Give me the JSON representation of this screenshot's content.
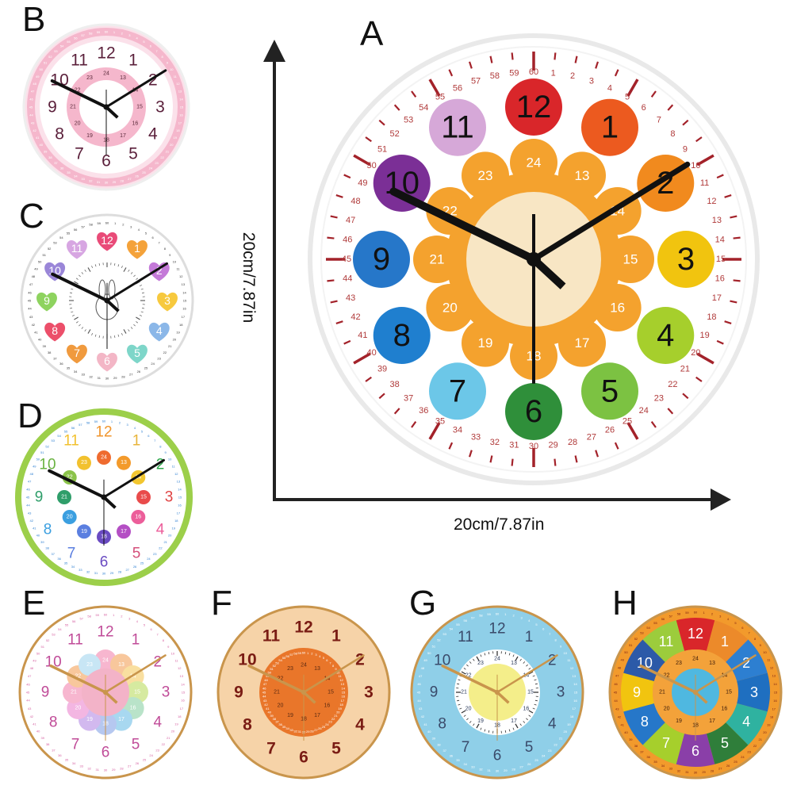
{
  "variants": [
    {
      "label": "A",
      "palette": "rainbow-large"
    },
    {
      "label": "B",
      "palette": "pink"
    },
    {
      "label": "C",
      "palette": "hearts"
    },
    {
      "label": "D",
      "palette": "green-rim"
    },
    {
      "label": "E",
      "palette": "flower-pastel"
    },
    {
      "label": "F",
      "palette": "orange"
    },
    {
      "label": "G",
      "palette": "blue"
    },
    {
      "label": "H",
      "palette": "segments"
    }
  ],
  "dimensions": {
    "width_label": "20cm/7.87in",
    "height_label": "20cm/7.87in"
  },
  "hours": [
    "12",
    "1",
    "2",
    "3",
    "4",
    "5",
    "6",
    "7",
    "8",
    "9",
    "10",
    "11"
  ],
  "hours24": [
    "24",
    "13",
    "14",
    "15",
    "16",
    "17",
    "18",
    "19",
    "20",
    "21",
    "22",
    "23"
  ],
  "minutes": [
    "60",
    "1",
    "2",
    "3",
    "4",
    "5",
    "6",
    "7",
    "8",
    "9",
    "10",
    "11",
    "12",
    "13",
    "14",
    "15",
    "16",
    "17",
    "18",
    "19",
    "20",
    "21",
    "22",
    "23",
    "24",
    "25",
    "26",
    "27",
    "28",
    "29",
    "30",
    "31",
    "32",
    "33",
    "34",
    "35",
    "36",
    "37",
    "38",
    "39",
    "40",
    "41",
    "42",
    "43",
    "44",
    "45",
    "46",
    "47",
    "48",
    "49",
    "50",
    "51",
    "52",
    "53",
    "54",
    "55",
    "56",
    "57",
    "58",
    "59"
  ],
  "colors": {
    "rainbow": [
      "#d9262a",
      "#ec5a1f",
      "#f18a1e",
      "#f1c40f",
      "#a6cf2c",
      "#7cc242",
      "#2f8f3a",
      "#6cc7e8",
      "#1f7fcf",
      "#2677c9",
      "#7b2f96",
      "#d6a8d8"
    ],
    "tick": "#a3222a",
    "hand": "#111111",
    "petal": "#f4a22e",
    "center": "#f8e6c4",
    "pink": "#f5b7cc",
    "green": "#9ccf4a",
    "orange": "#e9762a",
    "peach": "#f6d3a8",
    "blue": "#8fcfe8",
    "gold": "#c9954c"
  },
  "icons": {
    "rabbit": "rabbit-icon",
    "arrow_up": "arrow-up-icon",
    "arrow_right": "arrow-right-icon"
  }
}
